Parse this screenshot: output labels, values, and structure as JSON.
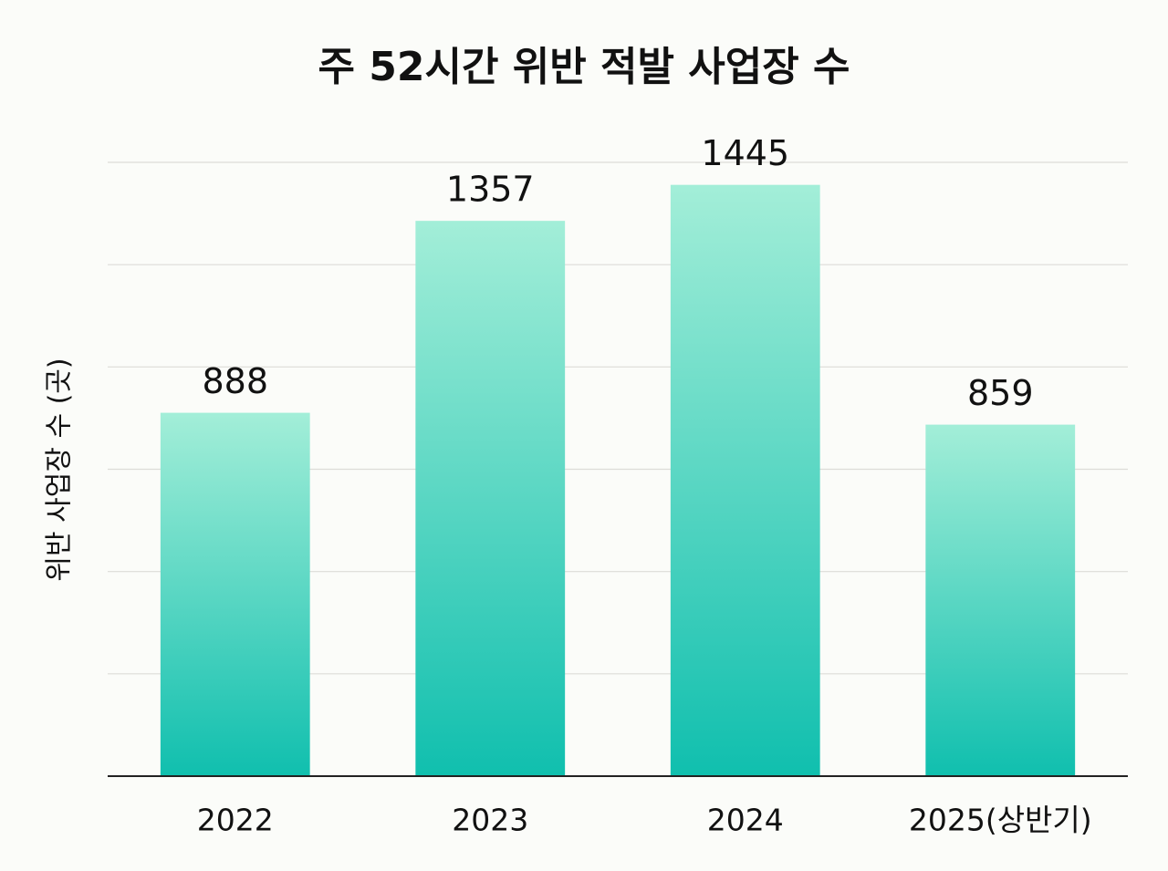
{
  "chart_data": {
    "type": "bar",
    "title": "주 52시간 위반 적발 사업장 수",
    "y_label": "위반 사업장 수 (곳)",
    "categories": [
      "2022",
      "2023",
      "2024",
      "2025(상반기)"
    ],
    "values": [
      888,
      1357,
      1445,
      859
    ],
    "color": "#10bfae",
    "ylim": [
      0,
      1500
    ],
    "yticks": [
      0,
      250,
      500,
      750,
      1000,
      1250,
      1500
    ],
    "grid": true
  }
}
